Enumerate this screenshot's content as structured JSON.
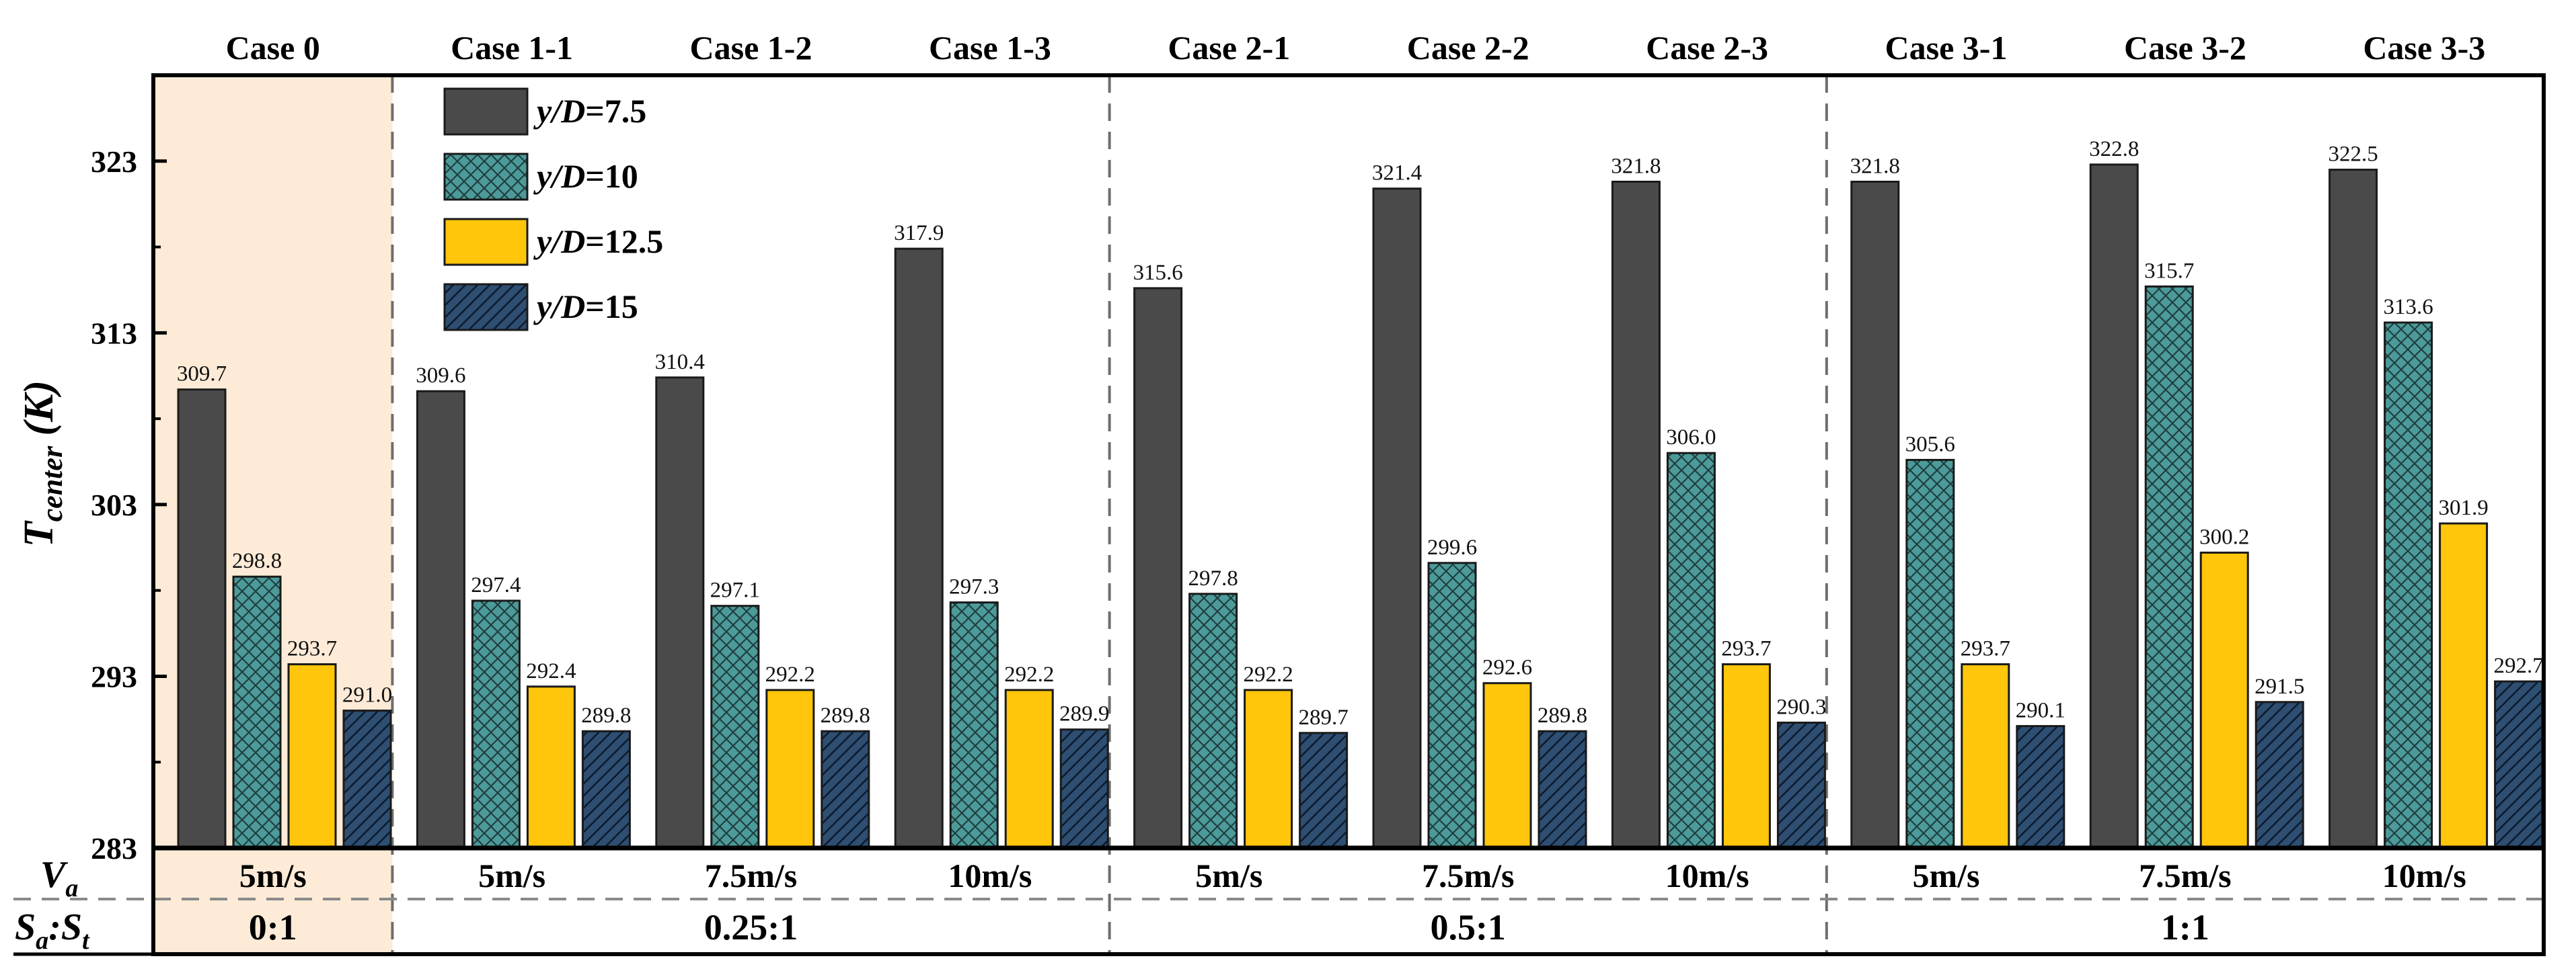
{
  "chart_data": {
    "type": "bar",
    "title": "",
    "ylabel": {
      "main": "T",
      "sub": "center",
      "unit": " (K)"
    },
    "xlabel": "",
    "ylim": [
      283,
      328
    ],
    "yticks": [
      283,
      293,
      303,
      313,
      323
    ],
    "categories": [
      "Case 0",
      "Case 1-1",
      "Case 1-2",
      "Case 1-3",
      "Case 2-1",
      "Case 2-2",
      "Case 2-3",
      "Case 3-1",
      "Case 3-2",
      "Case 3-3"
    ],
    "legend_position": "top-left",
    "series": [
      {
        "name": "y/D=7.5",
        "prefix": "y/D",
        "eq": "=7.5",
        "color": "#4a4a4a",
        "pattern": "solid",
        "values": [
          309.7,
          309.6,
          310.4,
          317.9,
          315.6,
          321.4,
          321.8,
          321.8,
          322.8,
          322.5
        ]
      },
      {
        "name": "y/D=10",
        "prefix": "y/D",
        "eq": "=10",
        "color": "#4d9a9a",
        "pattern": "crosshatch",
        "values": [
          298.8,
          297.4,
          297.1,
          297.3,
          297.8,
          299.6,
          306.0,
          305.6,
          315.7,
          313.6
        ]
      },
      {
        "name": "y/D=12.5",
        "prefix": "y/D",
        "eq": "=12.5",
        "color": "#ffc60b",
        "pattern": "solid",
        "values": [
          293.7,
          292.4,
          292.2,
          292.2,
          292.2,
          292.6,
          293.7,
          293.7,
          300.2,
          301.9
        ]
      },
      {
        "name": "y/D=15",
        "prefix": "y/D",
        "eq": "=15",
        "color": "#2e4e72",
        "pattern": "diagonal",
        "values": [
          291.0,
          289.8,
          289.8,
          289.9,
          289.7,
          289.8,
          290.3,
          290.1,
          291.5,
          292.7
        ]
      }
    ],
    "velocity_row": {
      "label_main": "V",
      "label_sub": "a",
      "values": [
        "5m/s",
        "5m/s",
        "7.5m/s",
        "10m/s",
        "5m/s",
        "7.5m/s",
        "10m/s",
        "5m/s",
        "7.5m/s",
        "10m/s"
      ]
    },
    "ratio_row": {
      "label_a": "S",
      "label_a_sub": "a",
      "label_sep": ":",
      "label_b": "S",
      "label_b_sub": "t",
      "groups": [
        {
          "label": "0:1",
          "from": 0,
          "to": 0
        },
        {
          "label": "0.25:1",
          "from": 1,
          "to": 3
        },
        {
          "label": "0.5:1",
          "from": 4,
          "to": 6
        },
        {
          "label": "1:1",
          "from": 7,
          "to": 9
        }
      ]
    },
    "highlight": {
      "category_index": 0,
      "color": "#fdebd7"
    },
    "group_dividers_after": [
      0,
      3,
      6
    ]
  }
}
